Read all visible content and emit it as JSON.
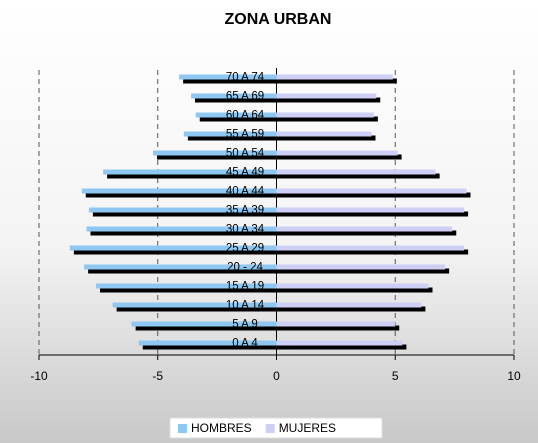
{
  "chart_data": {
    "type": "bar",
    "orientation": "horizontal",
    "title": "ZONA URBAN",
    "categories": [
      "0 A 4",
      "5 A 9",
      "10 A 14",
      "15 A 19",
      "20 - 24",
      "25 A 29",
      "30 A 34",
      "35 A 39",
      "40 A 44",
      "45 A 49",
      "50 A 54",
      "55 A 59",
      "60 A 64",
      "65 A 69",
      "70 A 74"
    ],
    "series": [
      {
        "name": "HOMBRES",
        "color": "#8ec8f2",
        "values": [
          -5.8,
          -6.1,
          -6.9,
          -7.6,
          -8.1,
          -8.7,
          -8.0,
          -7.9,
          -8.2,
          -7.3,
          -5.2,
          -3.9,
          -3.4,
          -3.6,
          -4.1
        ]
      },
      {
        "name": "MUJERES",
        "color": "#cfcff5",
        "values": [
          5.3,
          5.0,
          6.1,
          6.4,
          7.1,
          7.9,
          7.4,
          7.9,
          8.0,
          6.7,
          5.1,
          4.0,
          4.1,
          4.2,
          4.9
        ]
      }
    ],
    "xlim": [
      -10,
      10
    ],
    "xticks": [
      -10,
      -5,
      0,
      5,
      10
    ],
    "grid": true,
    "legend": "bottom"
  }
}
